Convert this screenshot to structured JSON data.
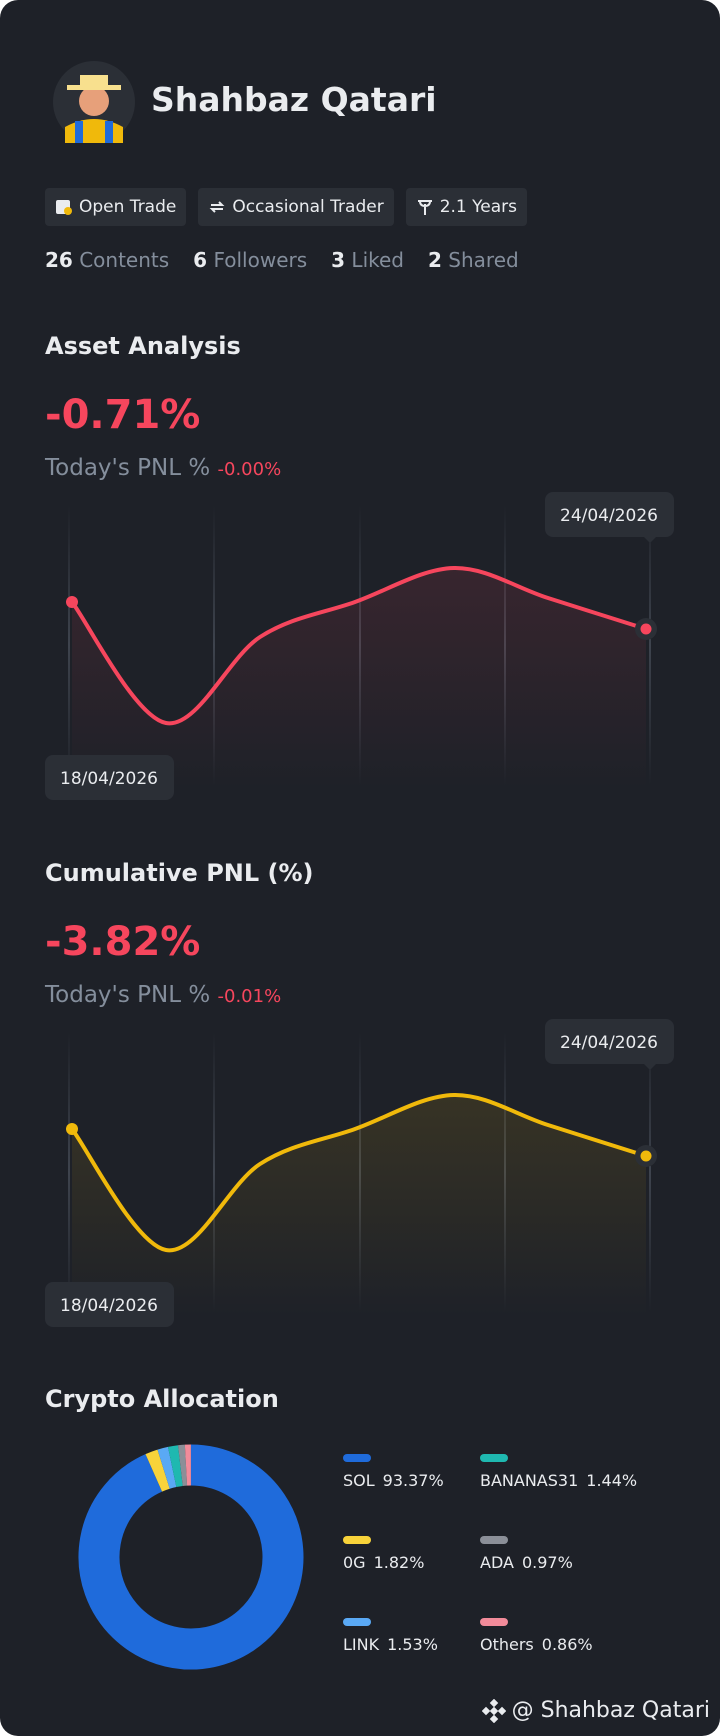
{
  "profile": {
    "name": "Shahbaz Qatari",
    "tags": [
      "Open Trade",
      "Occasional Trader",
      "2.1 Years"
    ],
    "stats": [
      {
        "count": "26",
        "label": "Contents"
      },
      {
        "count": "6",
        "label": "Followers"
      },
      {
        "count": "3",
        "label": "Liked"
      },
      {
        "count": "2",
        "label": "Shared"
      }
    ]
  },
  "charts": [
    {
      "title": "Asset Analysis",
      "value": "-0.71%",
      "pnl_label": "Today's PNL %",
      "pnl_value": "-0.00%",
      "start_date": "18/04/2026",
      "end_date": "24/04/2026",
      "color": "#f6465d"
    },
    {
      "title": "Cumulative PNL (%)",
      "value": "-3.82%",
      "pnl_label": "Today's PNL %",
      "pnl_value": "-0.01%",
      "start_date": "18/04/2026",
      "end_date": "24/04/2026",
      "color": "#f0b90b"
    }
  ],
  "allocation": {
    "title": "Crypto Allocation",
    "type": "donut",
    "categories": [
      "SOL",
      "0G",
      "LINK",
      "BANANAS31",
      "ADA",
      "Others"
    ],
    "values": [
      93.37,
      1.82,
      1.53,
      1.44,
      0.97,
      0.86
    ],
    "value_labels": [
      "93.37%",
      "1.82%",
      "1.53%",
      "1.44%",
      "0.97%",
      "0.86%"
    ],
    "colors": [
      "#1f6bdb",
      "#f8d33a",
      "#5aa9f5",
      "#1fb8b0",
      "#8b8f98",
      "#f28b9a"
    ]
  },
  "footer": "@ Shahbaz Qatari"
}
